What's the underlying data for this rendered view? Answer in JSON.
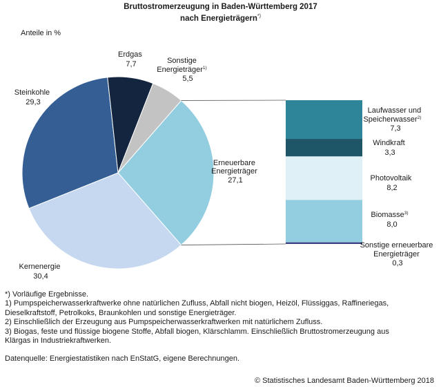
{
  "title": {
    "line1": "Bruttostromerzeugung in Baden-Württemberg 2017",
    "line2": "nach Energieträgern",
    "marker": "*)"
  },
  "chart_data": {
    "type": "pie",
    "title": "Bruttostromerzeugung in Baden-Württemberg 2017 nach Energieträgern",
    "unit_label": "Anteile in %",
    "slices": [
      {
        "name": "Erneuerbare Energieträger",
        "value": 27.1,
        "display": "27,1",
        "color": "#92cde0"
      },
      {
        "name": "Kernenergie",
        "value": 30.4,
        "display": "30,4",
        "color": "#c5d8f0"
      },
      {
        "name": "Steinkohle",
        "value": 29.3,
        "display": "29,3",
        "color": "#355f94"
      },
      {
        "name": "Erdgas",
        "value": 7.7,
        "display": "7,7",
        "color": "#14253f"
      },
      {
        "name": "Sonstige Energieträger",
        "value": 5.5,
        "display": "5,5",
        "note": "1)",
        "color": "#c3c3c3"
      }
    ],
    "breakdown": {
      "of": "Erneuerbare Energieträger",
      "type": "stacked-bar",
      "segments": [
        {
          "name": "Laufwasser und Speicherwasser",
          "value": 7.3,
          "display": "7,3",
          "note": "2)",
          "color": "#2e8499"
        },
        {
          "name": "Windkraft",
          "value": 3.3,
          "display": "3,3",
          "color": "#1e5567"
        },
        {
          "name": "Photovoltaik",
          "value": 8.2,
          "display": "8,2",
          "color": "#dff0f6"
        },
        {
          "name": "Biomasse",
          "value": 8.0,
          "display": "8,0",
          "note": "3)",
          "color": "#92cde0"
        },
        {
          "name": "Sonstige erneuerbare Energieträger",
          "value": 0.3,
          "display": "0,3",
          "color": "#3b3f80"
        }
      ]
    }
  },
  "labels": {
    "erneuerbare": [
      "Erneuerbare",
      "Energieträger"
    ],
    "kernenergie": [
      "Kernenergie"
    ],
    "steinkohle": [
      "Steinkohle"
    ],
    "erdgas": [
      "Erdgas"
    ],
    "sonstige": [
      "Sonstige",
      "Energieträger"
    ],
    "laufwasser": [
      "Laufwasser und",
      "Speicherwasser"
    ],
    "windkraft": [
      "Windkraft"
    ],
    "photovoltaik": [
      "Photovoltaik"
    ],
    "biomasse": [
      "Biomasse"
    ],
    "sonstige_ee": [
      "Sonstige erneuerbare",
      "Energieträger"
    ]
  },
  "footnotes": [
    "*) Vorläufige Ergebnisse.",
    "1) Pumpspeicherwasserkraftwerke ohne natürlichen Zufluss, Abfall nicht biogen, Heizöl, Flüssiggas, Raffineriegas,",
    "Dieselkraftstoff, Petrolkoks, Braunkohlen und sonstige Energieträger.",
    "2) Einschließlich der Erzeugung aus Pumpspeicherwasserkraftwerken mit natürlichem Zufluss.",
    "3) Biogas, feste und flüssige biogene Stoffe, Abfall biogen, Klärschlamm. Einschließlich Bruttostromerzeugung aus",
    "Klärgas in Industriekraftwerken."
  ],
  "source": "Datenquelle: Energiestatistiken nach EnStatG, eigene Berechnungen.",
  "copyright": "© Statistisches Landesamt Baden-Württemberg 2018"
}
